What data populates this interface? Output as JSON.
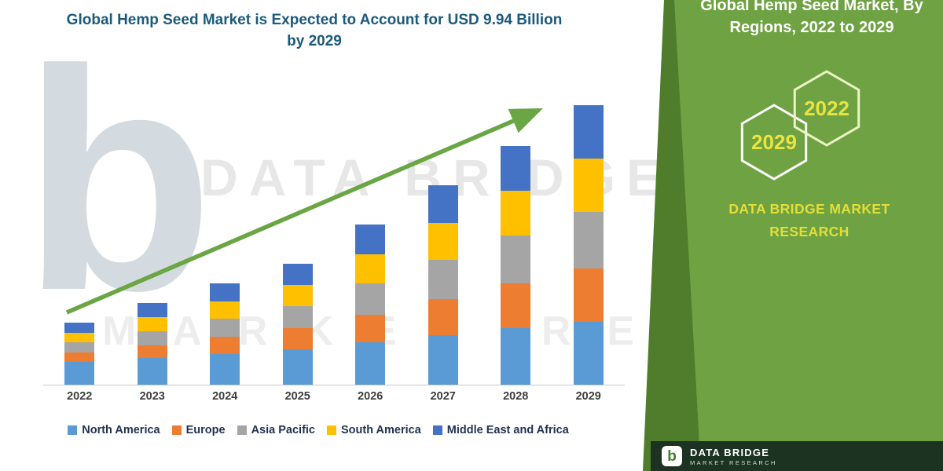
{
  "chart": {
    "title_line1": "Global Hemp Seed Market is Expected to Account for USD 9.94 Billion",
    "title_line2": "by 2029"
  },
  "chart_data": {
    "type": "bar",
    "stacked": true,
    "title": "Global Hemp Seed Market is Expected to Account for USD 9.94 Billion by 2029",
    "categories": [
      "2022",
      "2023",
      "2024",
      "2025",
      "2026",
      "2027",
      "2028",
      "2029"
    ],
    "series": [
      {
        "name": "North America",
        "color": "#5B9BD5",
        "values": [
          0.8,
          0.95,
          1.1,
          1.25,
          1.5,
          1.75,
          2.0,
          2.24
        ]
      },
      {
        "name": "Europe",
        "color": "#ED7D31",
        "values": [
          0.35,
          0.45,
          0.6,
          0.75,
          1.0,
          1.3,
          1.6,
          1.9
        ]
      },
      {
        "name": "Asia Pacific",
        "color": "#A5A5A5",
        "values": [
          0.35,
          0.5,
          0.65,
          0.8,
          1.1,
          1.4,
          1.7,
          2.0
        ]
      },
      {
        "name": "South America",
        "color": "#FFC000",
        "values": [
          0.35,
          0.5,
          0.6,
          0.75,
          1.05,
          1.3,
          1.6,
          1.9
        ]
      },
      {
        "name": "Middle East and Africa",
        "color": "#4472C4",
        "values": [
          0.35,
          0.5,
          0.65,
          0.75,
          1.05,
          1.35,
          1.6,
          1.9
        ]
      }
    ],
    "totals_estimated": [
      2.2,
      2.9,
      3.6,
      4.3,
      5.7,
      7.1,
      8.5,
      9.94
    ],
    "unit": "USD Billion",
    "ylim": [
      0,
      10
    ],
    "grid": false,
    "legend_position": "bottom",
    "annotations": [
      "green upward trend arrow from 2022 to 2029"
    ]
  },
  "watermark": {
    "letter": "b",
    "line1": "DATA BRIDGE",
    "line2": "MARKET RESEARCH"
  },
  "side_panel": {
    "title_line1": "Global Hemp Seed Market, By",
    "title_line2": "Regions, 2022 to 2029",
    "hex_left_label": "2029",
    "hex_right_label": "2022",
    "brand_line1": "DATA BRIDGE MARKET",
    "brand_line2": "RESEARCH",
    "colors": {
      "panel_green": "#6fa243",
      "panel_dark_green": "#4f7d2c",
      "accent_yellow": "#e9e43f",
      "title_white": "#ffffff"
    }
  },
  "footer": {
    "brand": "DATA BRIDGE",
    "sub": "MARKET RESEARCH"
  },
  "colors": {
    "arrow_green": "#6aa643",
    "chart_title_teal": "#1c5a7c",
    "legend_text": "#1f3250",
    "footer_bg": "#1c3322"
  }
}
